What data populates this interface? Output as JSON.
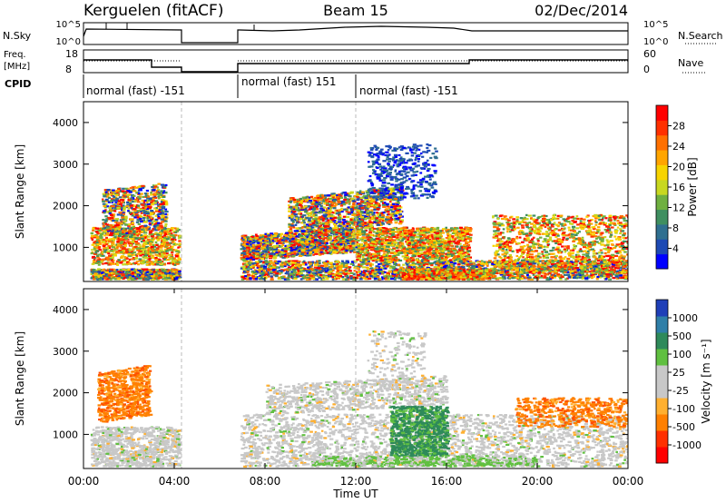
{
  "header": {
    "station": "Kerguelen (fitACF)",
    "beam": "Beam 15",
    "date": "02/Dec/2014"
  },
  "strips": {
    "nsky": {
      "label": "N.Sky",
      "ticks": [
        "10^5",
        "10^0"
      ],
      "right_label": "N.Search",
      "right_ticks": [
        "10^5",
        "10^0"
      ]
    },
    "freq": {
      "label1": "Freq.",
      "label2": "[MHz]",
      "ticks": [
        "18",
        "8"
      ],
      "right_label": "Nave",
      "right_ticks": [
        "60",
        "0"
      ]
    },
    "cpid": {
      "label": "CPID",
      "programs": [
        {
          "name": "normal (fast) -151",
          "start": 0.0,
          "end": 4.3
        },
        {
          "name": "normal (fast) 151",
          "start": 6.85,
          "end": 12.0
        },
        {
          "name": "normal (fast) -151",
          "start": 12.0,
          "end": 24.0
        }
      ]
    }
  },
  "power_panel": {
    "ylabel": "Slant Range [km]",
    "cbar_title": "Power [dB]",
    "cbar_ticks": [
      "28",
      "24",
      "20",
      "16",
      "12",
      "8",
      "4"
    ],
    "cbar_colors": [
      "#0000ff",
      "#1e4ab4",
      "#2f6f90",
      "#3f8f60",
      "#6fb040",
      "#c8d820",
      "#f7d400",
      "#ffa500",
      "#ff7000",
      "#ff3000",
      "#ff0000"
    ]
  },
  "velocity_panel": {
    "ylabel": "Slant Range [km]",
    "cbar_title": "Velocity [m s⁻¹]",
    "cbar_ticks": [
      "1000",
      "500",
      "100",
      "25",
      "-25",
      "-100",
      "-500",
      "-1000"
    ],
    "cbar_colors": [
      "#1f3fb8",
      "#2f7fa8",
      "#2e8a5a",
      "#60c040",
      "#c8c8c8",
      "#c8c8c8",
      "#ffb030",
      "#ff8000",
      "#ff3000",
      "#ff0000"
    ]
  },
  "x_axis": {
    "label": "Time UT",
    "ticks": [
      "00:00",
      "04:00",
      "08:00",
      "12:00",
      "16:00",
      "20:00",
      "00:00"
    ]
  },
  "chart_data": {
    "type": "heatmap",
    "x_range_hours": [
      0,
      24
    ],
    "y_range_km": [
      180,
      4500
    ],
    "y_ticks_km": [
      1000,
      2000,
      3000,
      4000
    ],
    "data_gap_hours": [
      4.3,
      6.85
    ],
    "power_regions": [
      {
        "t0": 0.2,
        "t1": 4.2,
        "r0": 400,
        "r1": 2600,
        "level": "mixed"
      },
      {
        "t0": 6.9,
        "t1": 24.0,
        "r0": 300,
        "r1": 2500,
        "level": "mixed"
      },
      {
        "t0": 12.5,
        "t1": 15.5,
        "r0": 2000,
        "r1": 3500,
        "level": "weak"
      }
    ],
    "velocity_regions": [
      {
        "t0": 0.5,
        "t1": 2.8,
        "r0": 1300,
        "r1": 2500,
        "vel": "-500"
      },
      {
        "t0": 13.5,
        "t1": 16.0,
        "r0": 500,
        "r1": 1700,
        "vel": "100"
      },
      {
        "t0": 6.9,
        "t1": 24.0,
        "r0": 300,
        "r1": 1500,
        "vel": "25"
      }
    ]
  }
}
